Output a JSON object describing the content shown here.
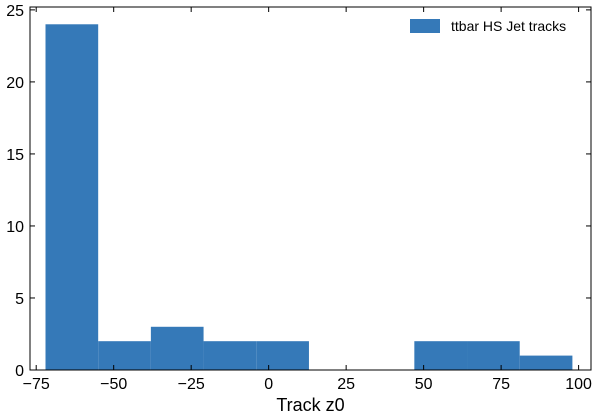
{
  "chart_data": {
    "type": "bar",
    "subtype": "histogram",
    "xlabel": "Track z0",
    "ylabel": "",
    "xlim": [
      -77,
      104
    ],
    "ylim": [
      0,
      25.2
    ],
    "bin_edges": [
      -72,
      -55,
      -38,
      -21,
      -4,
      13,
      30,
      47,
      64,
      81,
      98
    ],
    "values": [
      24,
      2,
      3,
      2,
      2,
      0,
      0,
      2,
      2,
      1
    ],
    "xticks": [
      -75,
      -50,
      -25,
      0,
      25,
      50,
      75,
      100
    ],
    "xtick_labels": [
      "−75",
      "−50",
      "−25",
      "0",
      "25",
      "50",
      "75",
      "100"
    ],
    "yticks": [
      0,
      5,
      10,
      15,
      20,
      25
    ],
    "ytick_labels": [
      "0",
      "5",
      "10",
      "15",
      "20",
      "25"
    ],
    "series": [
      {
        "name": "ttbar HS Jet tracks",
        "color": "#3579b8"
      }
    ],
    "legend_position": "top-right",
    "grid": false
  }
}
